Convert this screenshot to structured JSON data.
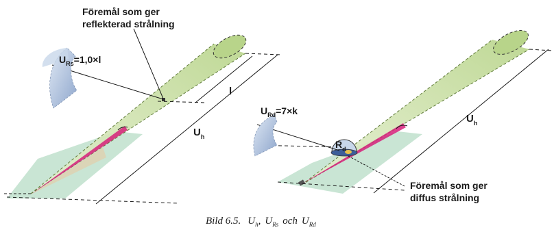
{
  "labels": {
    "reflect_l1": "Föremål som ger",
    "reflect_l2": "reflekterad strålning",
    "urs_u": "U",
    "urs_sub": "Rs",
    "urs_eq": "=1,0×l",
    "l": "l",
    "uh_left_u": "U",
    "uh_left_sub": "h",
    "urd_u": "U",
    "urd_sub": "Rd",
    "urd_eq": "=7×k",
    "r": "R",
    "r_sub": "d",
    "uh_right_u": "U",
    "uh_right_sub": "h",
    "diffus_l1": "Föremål som ger",
    "diffus_l2": "diffus strålning"
  },
  "caption": {
    "bild": "Bild 6.5.",
    "u1": "U",
    "u1_sub": "h",
    "sep": ",",
    "u2": "U",
    "u2_sub": "Rs",
    "och": "och",
    "u3": "U",
    "u3_sub": "Rd"
  },
  "colors": {
    "beam_green": "#c9dfa6",
    "beam_dash": "#5f7a3a",
    "ground_green": "#b9dcc8",
    "laser_red": "#d6207a",
    "blue_shade": "#9fb5d6",
    "line": "#1a1a1a"
  }
}
